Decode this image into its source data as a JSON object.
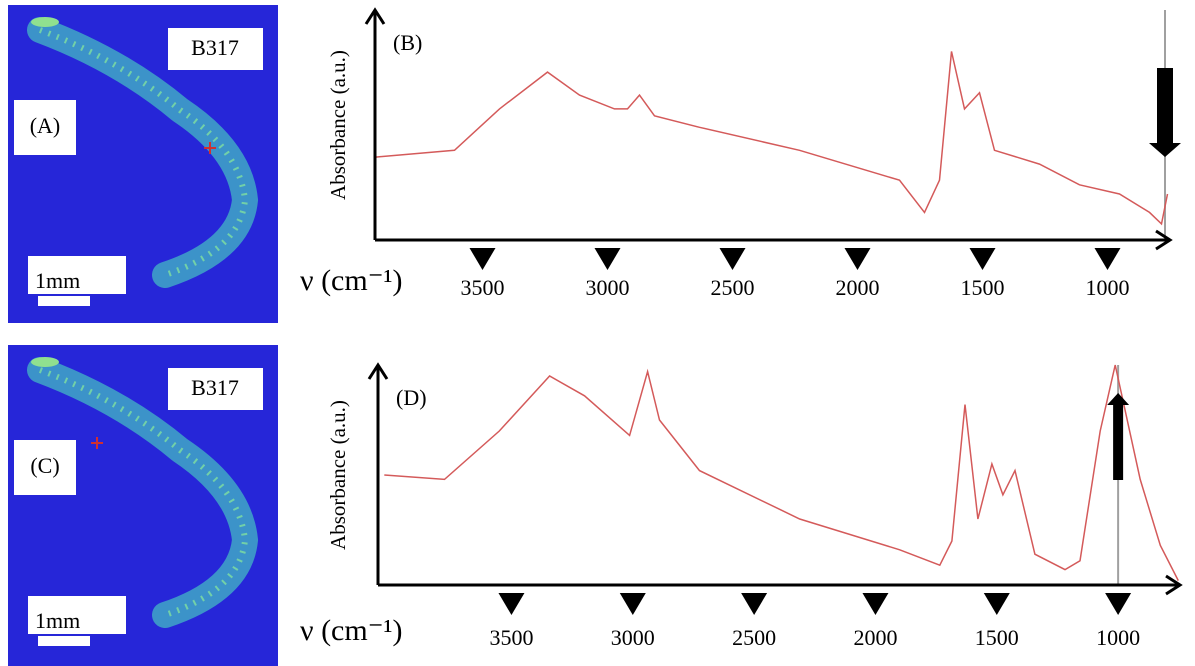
{
  "images": [
    {
      "label": "(A)",
      "sample": "B317",
      "scale": "1mm"
    },
    {
      "label": "(C)",
      "sample": "B317",
      "scale": "1mm"
    }
  ],
  "chart_data": [
    {
      "type": "line",
      "label": "(B)",
      "y_label": "Absorbance (a.u.)",
      "x_label": "ν (cm⁻¹)",
      "color": "#d45a5a",
      "xlim": [
        3930,
        750
      ],
      "ylim": [
        0,
        1
      ],
      "xticks": [
        3500,
        3000,
        2500,
        2000,
        1500,
        1000
      ],
      "marker_x": 770,
      "marker_color": "#a0a0a0",
      "x": [
        3932,
        3612,
        3432,
        3240,
        3112,
        2972,
        2920,
        2872,
        2812,
        2632,
        2232,
        1832,
        1732,
        1672,
        1624,
        1572,
        1512,
        1452,
        1272,
        1112,
        952,
        832,
        784,
        760
      ],
      "values": [
        0.36,
        0.39,
        0.57,
        0.73,
        0.63,
        0.57,
        0.57,
        0.63,
        0.54,
        0.49,
        0.39,
        0.26,
        0.12,
        0.26,
        0.82,
        0.57,
        0.64,
        0.39,
        0.33,
        0.24,
        0.2,
        0.12,
        0.07,
        0.2
      ]
    },
    {
      "type": "line",
      "label": "(D)",
      "y_label": "Absorbance (a.u.)",
      "x_label": "ν (cm⁻¹)",
      "color": "#d45a5a",
      "xlim": [
        4050,
        745
      ],
      "ylim": [
        0,
        1
      ],
      "xticks": [
        3500,
        3000,
        2500,
        2000,
        1500,
        1000
      ],
      "marker_x": 1000,
      "marker_color": "#a0a0a0",
      "x": [
        4024,
        3776,
        3550,
        3343,
        3199,
        3013,
        2939,
        2890,
        2725,
        2312,
        1900,
        1735,
        1685,
        1631,
        1578,
        1520,
        1475,
        1425,
        1343,
        1219,
        1157,
        1074,
        1012,
        909,
        826,
        752
      ],
      "values": [
        0.5,
        0.48,
        0.7,
        0.95,
        0.86,
        0.68,
        0.97,
        0.75,
        0.52,
        0.3,
        0.16,
        0.09,
        0.2,
        0.82,
        0.3,
        0.55,
        0.41,
        0.52,
        0.14,
        0.07,
        0.11,
        0.7,
        1.0,
        0.48,
        0.18,
        0.02
      ]
    }
  ]
}
